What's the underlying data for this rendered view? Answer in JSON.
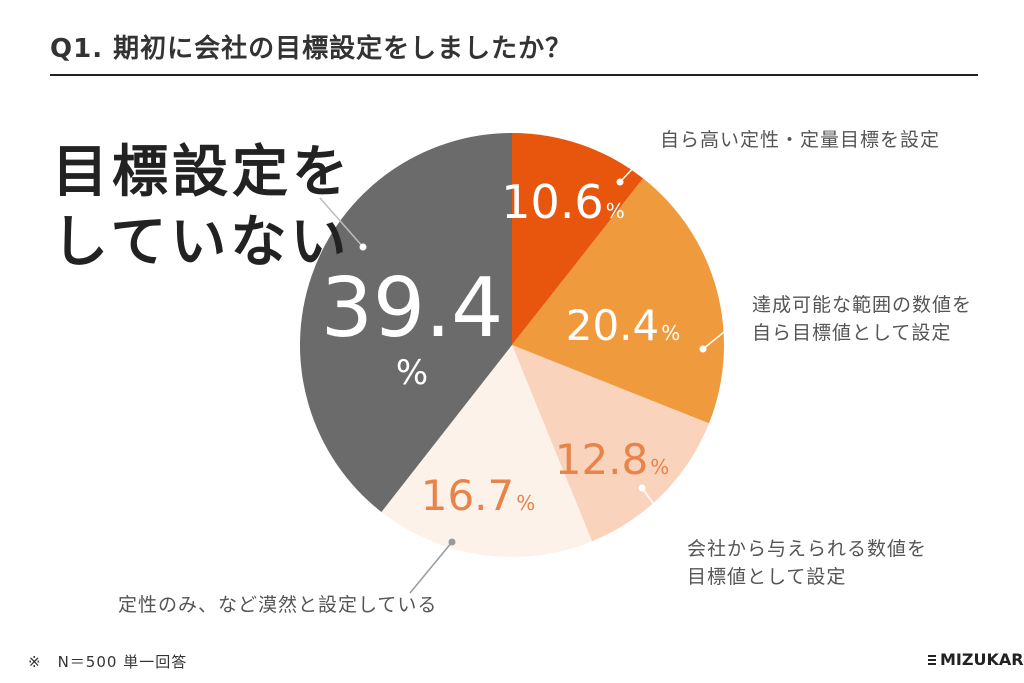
{
  "title": "Q1. 期初に会社の目標設定をしましたか？",
  "highlight": {
    "line1": "目標設定を",
    "line2": "していない"
  },
  "callouts": {
    "s1": "自ら高い定性・定量目標を設定",
    "s2_l1": "達成可能な範囲の数値を",
    "s2_l2": "自ら目標値として設定",
    "s3_l1": "会社から与えられる数値を",
    "s3_l2": "目標値として設定",
    "s4": "定性のみ、など漠然と設定している"
  },
  "footnote": "※　N＝500 単一回答",
  "brand": "MIZUKARA",
  "chart_data": {
    "type": "pie",
    "title": "Q1. 期初に会社の目標設定をしましたか？",
    "unit": "%",
    "slices": [
      {
        "label": "自ら高い定性・定量目標を設定",
        "value": 10.6,
        "value_text": "10.6",
        "color": "#E8560E",
        "label_color": "#ffffff"
      },
      {
        "label": "達成可能な範囲の数値を自ら目標値として設定",
        "value": 20.4,
        "value_text": "20.4",
        "color": "#F09A3E",
        "label_color": "#ffffff"
      },
      {
        "label": "会社から与えられる数値を目標値として設定",
        "value": 12.8,
        "value_text": "12.8",
        "color": "#FAD3BC",
        "label_color": "#E8834A"
      },
      {
        "label": "定性のみ、など漠然と設定している",
        "value": 16.7,
        "value_text": "16.7",
        "color": "#FDF2EA",
        "label_color": "#E8834A"
      },
      {
        "label": "目標設定をしていない",
        "value": 39.4,
        "value_text": "39.4",
        "color": "#6B6B6B",
        "label_color": "#ffffff"
      }
    ]
  }
}
